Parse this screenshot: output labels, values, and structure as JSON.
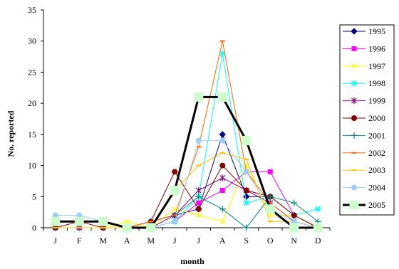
{
  "chart_data": {
    "type": "line",
    "title": "",
    "xlabel": "month",
    "ylabel": "No. reported",
    "categories": [
      "J",
      "F",
      "M",
      "A",
      "M",
      "J",
      "J",
      "A",
      "S",
      "O",
      "N",
      "D"
    ],
    "ylim": [
      0,
      35
    ],
    "yticks": [
      0,
      5,
      10,
      15,
      20,
      25,
      30,
      35
    ],
    "grid": false,
    "legend_position": "right",
    "series": [
      {
        "name": "1995",
        "color": "#000080",
        "marker": "diamond",
        "values": [
          0,
          0,
          0,
          0,
          1,
          2,
          3,
          15,
          5,
          5,
          2,
          0
        ]
      },
      {
        "name": "1996",
        "color": "#ff00ff",
        "marker": "square",
        "values": [
          0,
          0,
          0,
          0,
          0,
          1,
          4,
          6,
          9,
          9,
          2,
          0
        ]
      },
      {
        "name": "1997",
        "color": "#ffff00",
        "marker": "x",
        "values": [
          0,
          0,
          0,
          1,
          0,
          3,
          2,
          1,
          10,
          2,
          2,
          0
        ]
      },
      {
        "name": "1998",
        "color": "#00ffff",
        "marker": "star",
        "values": [
          0,
          0,
          0,
          0,
          0,
          1,
          5,
          28,
          4,
          5,
          2,
          3
        ]
      },
      {
        "name": "1999",
        "color": "#800080",
        "marker": "asterisk",
        "values": [
          0,
          0,
          0,
          0,
          0,
          2,
          6,
          8,
          6,
          4,
          1,
          0
        ]
      },
      {
        "name": "2000",
        "color": "#800000",
        "marker": "circle",
        "values": [
          0,
          1,
          0,
          0,
          1,
          9,
          3,
          10,
          6,
          5,
          2,
          0
        ]
      },
      {
        "name": "2001",
        "color": "#008080",
        "marker": "plus",
        "values": [
          0,
          0,
          0,
          0,
          1,
          2,
          5,
          3,
          0,
          5,
          4,
          1
        ]
      },
      {
        "name": "2002",
        "color": "#ff6600",
        "marker": "dash",
        "values": [
          0,
          0,
          0,
          0,
          1,
          2,
          13,
          30,
          9,
          4,
          1,
          0
        ]
      },
      {
        "name": "2003",
        "color": "#ffc000",
        "marker": "dash",
        "values": [
          0,
          0,
          0,
          0,
          0,
          6,
          10,
          12,
          11,
          1,
          1,
          0
        ]
      },
      {
        "name": "2004",
        "color": "#99ccff",
        "marker": "circle",
        "values": [
          2,
          2,
          1,
          0,
          0,
          1,
          14,
          14,
          9,
          3,
          1,
          0
        ]
      },
      {
        "name": "2005",
        "color": "#000000",
        "marker": "bigsquare",
        "values": [
          1,
          1,
          1,
          0,
          0,
          6,
          21,
          21,
          14,
          3,
          0,
          0
        ]
      }
    ]
  }
}
